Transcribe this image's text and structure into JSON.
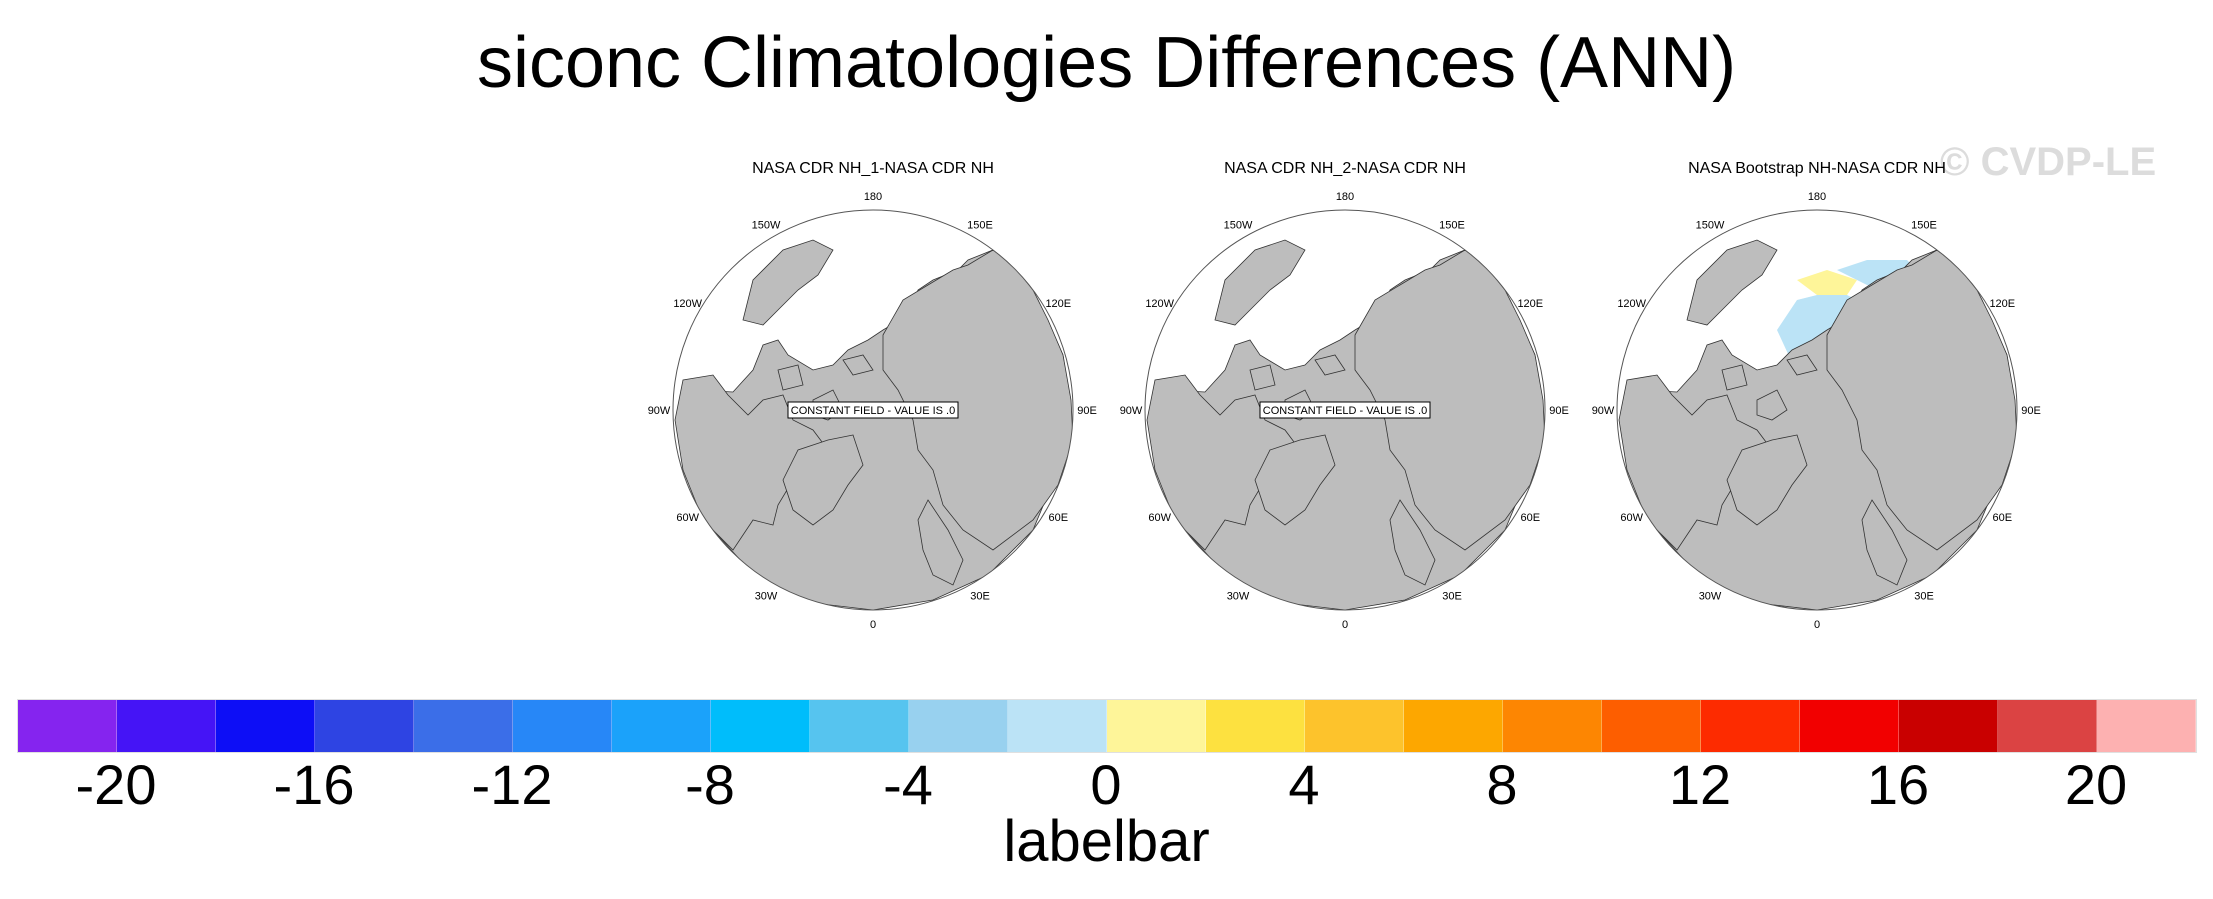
{
  "title": "siconc Climatologies Differences (ANN)",
  "watermark": "© CVDP-LE",
  "panels": [
    {
      "title": "NASA CDR NH_1-NASA CDR NH",
      "constant_field": "CONSTANT FIELD - VALUE IS .0",
      "has_ice": false
    },
    {
      "title": "NASA CDR NH_2-NASA CDR NH",
      "constant_field": "CONSTANT FIELD - VALUE IS .0",
      "has_ice": false
    },
    {
      "title": "NASA Bootstrap NH-NASA CDR NH",
      "constant_field": "",
      "has_ice": true
    }
  ],
  "lon_labels": [
    "180",
    "150E",
    "120E",
    "90E",
    "60E",
    "30E",
    "0",
    "30W",
    "60W",
    "90W",
    "120W",
    "150W"
  ],
  "labelbar": {
    "label": "labelbar",
    "colors": [
      "#8524ef",
      "#4514f6",
      "#0d0ef6",
      "#2e44e3",
      "#3b6ee8",
      "#2787f7",
      "#1ba2fa",
      "#00bdfb",
      "#56c4ef",
      "#98d1ef",
      "#bbe3f6",
      "#fef599",
      "#fde140",
      "#fdc32c",
      "#fda700",
      "#fd8602",
      "#fd5e00",
      "#fd2b00",
      "#f20000",
      "#c90000",
      "#db4343",
      "#fdb1b1"
    ],
    "ticks": [
      "-20",
      "-16",
      "-12",
      "-8",
      "-4",
      "0",
      "4",
      "8",
      "12",
      "16",
      "20"
    ]
  }
}
